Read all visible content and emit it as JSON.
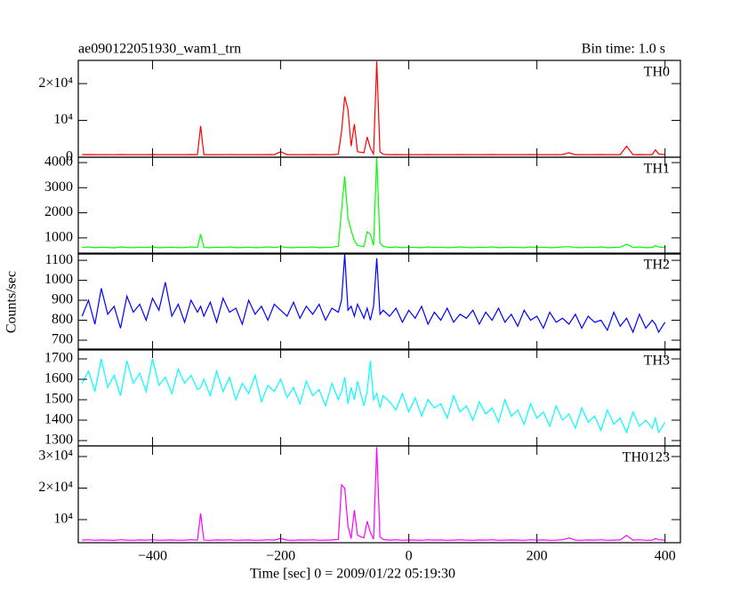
{
  "header": {
    "title": "ae090122051930_wam1_trn",
    "bin_time": "Bin time: 1.0 s"
  },
  "ylabel": "Counts/sec",
  "chart_data": [
    {
      "type": "line",
      "x": [
        -510,
        -500,
        -490,
        -480,
        -470,
        -460,
        -450,
        -440,
        -430,
        -420,
        -410,
        -400,
        -390,
        -380,
        -370,
        -360,
        -350,
        -340,
        -330,
        -325,
        -320,
        -310,
        -300,
        -290,
        -280,
        -270,
        -260,
        -250,
        -240,
        -230,
        -220,
        -210,
        -200,
        -190,
        -180,
        -170,
        -160,
        -150,
        -140,
        -130,
        -120,
        -110,
        -105,
        -100,
        -95,
        -90,
        -85,
        -80,
        -70,
        -65,
        -60,
        -55,
        -50,
        -45,
        -40,
        -30,
        -20,
        -10,
        0,
        10,
        20,
        30,
        40,
        50,
        60,
        70,
        80,
        90,
        100,
        110,
        120,
        130,
        140,
        150,
        160,
        170,
        180,
        190,
        200,
        210,
        220,
        230,
        240,
        250,
        260,
        270,
        280,
        290,
        300,
        310,
        320,
        330,
        340,
        350,
        360,
        370,
        380,
        385,
        390,
        400
      ],
      "series": [
        {
          "name": "TH0",
          "color": "#ff0000",
          "values": [
            700,
            720,
            690,
            710,
            700,
            680,
            720,
            700,
            690,
            710,
            700,
            720,
            690,
            700,
            710,
            690,
            700,
            720,
            700,
            8500,
            700,
            690,
            710,
            700,
            720,
            690,
            700,
            710,
            690,
            700,
            720,
            700,
            1500,
            700,
            690,
            710,
            700,
            720,
            690,
            700,
            710,
            800,
            7000,
            16500,
            13000,
            3000,
            9000,
            1500,
            1200,
            5500,
            2500,
            900,
            26000,
            1500,
            800,
            700,
            720,
            690,
            710,
            700,
            690,
            720,
            700,
            710,
            690,
            700,
            720,
            700,
            690,
            710,
            700,
            720,
            690,
            700,
            710,
            700,
            690,
            720,
            700,
            710,
            690,
            700,
            720,
            1200,
            700,
            690,
            710,
            700,
            720,
            690,
            700,
            710,
            3000,
            700,
            720,
            690,
            700,
            2000,
            900,
            700
          ]
        }
      ],
      "xlim": [
        -516,
        424
      ],
      "xticks": [
        -400,
        -200,
        0,
        200,
        400
      ],
      "ylim": [
        0,
        26300
      ],
      "yticks": [
        0,
        {
          "value": 10000,
          "label": "10⁴"
        },
        {
          "value": 20000,
          "label": "2×10⁴"
        }
      ]
    },
    {
      "type": "line",
      "x": [
        -510,
        -500,
        -490,
        -480,
        -470,
        -460,
        -450,
        -440,
        -430,
        -420,
        -410,
        -400,
        -390,
        -380,
        -370,
        -360,
        -350,
        -340,
        -330,
        -325,
        -320,
        -310,
        -300,
        -290,
        -280,
        -270,
        -260,
        -250,
        -240,
        -230,
        -220,
        -210,
        -200,
        -190,
        -180,
        -170,
        -160,
        -150,
        -140,
        -130,
        -120,
        -110,
        -105,
        -100,
        -95,
        -90,
        -85,
        -80,
        -70,
        -65,
        -60,
        -55,
        -50,
        -45,
        -40,
        -30,
        -20,
        -10,
        0,
        10,
        20,
        30,
        40,
        50,
        60,
        70,
        80,
        90,
        100,
        110,
        120,
        130,
        140,
        150,
        160,
        170,
        180,
        190,
        200,
        210,
        220,
        230,
        240,
        250,
        260,
        270,
        280,
        290,
        300,
        310,
        320,
        330,
        340,
        350,
        360,
        370,
        380,
        385,
        390,
        400
      ],
      "series": [
        {
          "name": "TH1",
          "color": "#00ff00",
          "values": [
            620,
            640,
            610,
            630,
            620,
            600,
            640,
            620,
            610,
            630,
            620,
            640,
            610,
            620,
            630,
            610,
            620,
            640,
            620,
            1150,
            620,
            610,
            630,
            620,
            640,
            610,
            620,
            630,
            610,
            620,
            640,
            620,
            650,
            620,
            610,
            630,
            620,
            640,
            610,
            620,
            630,
            660,
            2100,
            3450,
            1800,
            1300,
            900,
            700,
            650,
            1250,
            1150,
            700,
            4200,
            800,
            660,
            620,
            640,
            610,
            630,
            620,
            610,
            640,
            620,
            630,
            610,
            620,
            640,
            620,
            610,
            630,
            620,
            640,
            610,
            620,
            630,
            620,
            610,
            640,
            620,
            630,
            610,
            620,
            640,
            650,
            620,
            610,
            630,
            620,
            640,
            610,
            620,
            630,
            750,
            620,
            640,
            610,
            620,
            700,
            640,
            620
          ]
        }
      ],
      "xlim": [
        -516,
        424
      ],
      "xticks": [
        -400,
        -200,
        0,
        200,
        400
      ],
      "ylim": [
        357,
        4214
      ],
      "yticks": [
        1000,
        2000,
        3000,
        4000
      ]
    },
    {
      "type": "line",
      "x": [
        -510,
        -500,
        -490,
        -480,
        -470,
        -460,
        -450,
        -440,
        -430,
        -420,
        -410,
        -400,
        -390,
        -380,
        -370,
        -360,
        -350,
        -340,
        -330,
        -325,
        -320,
        -310,
        -300,
        -290,
        -280,
        -270,
        -260,
        -250,
        -240,
        -230,
        -220,
        -210,
        -200,
        -190,
        -180,
        -170,
        -160,
        -150,
        -140,
        -130,
        -120,
        -110,
        -105,
        -100,
        -95,
        -90,
        -85,
        -80,
        -70,
        -65,
        -60,
        -55,
        -50,
        -45,
        -40,
        -30,
        -20,
        -10,
        0,
        10,
        20,
        30,
        40,
        50,
        60,
        70,
        80,
        90,
        100,
        110,
        120,
        130,
        140,
        150,
        160,
        170,
        180,
        190,
        200,
        210,
        220,
        230,
        240,
        250,
        260,
        270,
        280,
        290,
        300,
        310,
        320,
        330,
        340,
        350,
        360,
        370,
        380,
        385,
        390,
        400
      ],
      "series": [
        {
          "name": "TH2",
          "color": "#0000ff",
          "values": [
            820,
            900,
            780,
            960,
            830,
            870,
            760,
            920,
            840,
            880,
            800,
            910,
            850,
            990,
            820,
            880,
            790,
            900,
            840,
            870,
            820,
            890,
            790,
            910,
            840,
            860,
            780,
            900,
            830,
            870,
            800,
            880,
            850,
            820,
            890,
            810,
            870,
            830,
            880,
            800,
            860,
            840,
            900,
            1130,
            850,
            870,
            820,
            880,
            810,
            860,
            800,
            870,
            1110,
            830,
            850,
            820,
            860,
            790,
            850,
            810,
            870,
            780,
            840,
            800,
            860,
            790,
            830,
            810,
            850,
            780,
            840,
            800,
            860,
            790,
            830,
            770,
            850,
            800,
            820,
            760,
            840,
            790,
            810,
            780,
            830,
            760,
            820,
            790,
            800,
            750,
            840,
            770,
            810,
            740,
            830,
            760,
            800,
            780,
            740,
            790
          ]
        }
      ],
      "xlim": [
        -516,
        424
      ],
      "xticks": [
        -400,
        -200,
        0,
        200,
        400
      ],
      "ylim": [
        651,
        1136
      ],
      "yticks": [
        700,
        800,
        900,
        1000,
        1100
      ]
    },
    {
      "type": "line",
      "x": [
        -510,
        -500,
        -490,
        -480,
        -470,
        -460,
        -450,
        -440,
        -430,
        -420,
        -410,
        -400,
        -390,
        -380,
        -370,
        -360,
        -350,
        -340,
        -330,
        -325,
        -320,
        -310,
        -300,
        -290,
        -280,
        -270,
        -260,
        -250,
        -240,
        -230,
        -220,
        -210,
        -200,
        -190,
        -180,
        -170,
        -160,
        -150,
        -140,
        -130,
        -120,
        -110,
        -105,
        -100,
        -95,
        -90,
        -85,
        -80,
        -70,
        -65,
        -60,
        -55,
        -50,
        -45,
        -40,
        -30,
        -20,
        -10,
        0,
        10,
        20,
        30,
        40,
        50,
        60,
        70,
        80,
        90,
        100,
        110,
        120,
        130,
        140,
        150,
        160,
        170,
        180,
        190,
        200,
        210,
        220,
        230,
        240,
        250,
        260,
        270,
        280,
        290,
        300,
        310,
        320,
        330,
        340,
        350,
        360,
        370,
        380,
        385,
        390,
        400
      ],
      "series": [
        {
          "name": "TH3",
          "color": "#00ffff",
          "values": [
            1580,
            1640,
            1540,
            1700,
            1560,
            1620,
            1520,
            1690,
            1580,
            1630,
            1540,
            1700,
            1570,
            1610,
            1530,
            1650,
            1580,
            1620,
            1550,
            1560,
            1600,
            1520,
            1640,
            1540,
            1610,
            1500,
            1580,
            1530,
            1620,
            1490,
            1570,
            1540,
            1600,
            1510,
            1560,
            1480,
            1590,
            1520,
            1550,
            1470,
            1580,
            1500,
            1540,
            1610,
            1480,
            1560,
            1500,
            1590,
            1470,
            1540,
            1690,
            1500,
            1530,
            1460,
            1520,
            1490,
            1450,
            1530,
            1440,
            1510,
            1420,
            1500,
            1460,
            1480,
            1410,
            1520,
            1440,
            1470,
            1400,
            1490,
            1430,
            1460,
            1390,
            1500,
            1420,
            1450,
            1380,
            1480,
            1410,
            1440,
            1370,
            1470,
            1400,
            1430,
            1360,
            1460,
            1390,
            1420,
            1350,
            1450,
            1380,
            1410,
            1340,
            1440,
            1370,
            1400,
            1360,
            1410,
            1340,
            1390
          ]
        }
      ],
      "xlim": [
        -516,
        424
      ],
      "xticks": [
        -400,
        -200,
        0,
        200,
        400
      ],
      "ylim": [
        1274,
        1748
      ],
      "yticks": [
        1300,
        1400,
        1500,
        1600,
        1700
      ]
    },
    {
      "type": "line",
      "x": [
        -510,
        -500,
        -490,
        -480,
        -470,
        -460,
        -450,
        -440,
        -430,
        -420,
        -410,
        -400,
        -390,
        -380,
        -370,
        -360,
        -350,
        -340,
        -330,
        -325,
        -320,
        -310,
        -300,
        -290,
        -280,
        -270,
        -260,
        -250,
        -240,
        -230,
        -220,
        -210,
        -200,
        -190,
        -180,
        -170,
        -160,
        -150,
        -140,
        -130,
        -120,
        -110,
        -105,
        -100,
        -95,
        -90,
        -85,
        -80,
        -70,
        -65,
        -60,
        -55,
        -50,
        -45,
        -40,
        -30,
        -20,
        -10,
        0,
        10,
        20,
        30,
        40,
        50,
        60,
        70,
        80,
        90,
        100,
        110,
        120,
        130,
        140,
        150,
        160,
        170,
        180,
        190,
        200,
        210,
        220,
        230,
        240,
        250,
        260,
        270,
        280,
        290,
        300,
        310,
        320,
        330,
        340,
        350,
        360,
        370,
        380,
        385,
        390,
        400
      ],
      "series": [
        {
          "name": "TH0123",
          "color": "#ff00ff",
          "values": [
            3500,
            3600,
            3450,
            3550,
            3500,
            3400,
            3600,
            3500,
            3450,
            3550,
            3500,
            3600,
            3450,
            3500,
            3550,
            3450,
            3500,
            3600,
            3500,
            12000,
            3500,
            3450,
            3550,
            3500,
            3600,
            3450,
            3500,
            3550,
            3450,
            3500,
            3600,
            3500,
            4000,
            3500,
            3450,
            3550,
            3500,
            3600,
            3450,
            3500,
            3550,
            3700,
            21000,
            20000,
            8000,
            4000,
            13000,
            5000,
            4200,
            9500,
            6000,
            3800,
            33000,
            4500,
            3700,
            3500,
            3600,
            3450,
            3550,
            3500,
            3450,
            3600,
            3500,
            3550,
            3450,
            3500,
            3600,
            3500,
            3450,
            3550,
            3500,
            3600,
            3450,
            3500,
            3550,
            3500,
            3450,
            3600,
            3500,
            3550,
            3450,
            3500,
            3600,
            4200,
            3500,
            3450,
            3550,
            3500,
            3600,
            3450,
            3500,
            3550,
            5000,
            3500,
            3600,
            3450,
            3500,
            4000,
            3600,
            3500
          ]
        }
      ],
      "xlim": [
        -516,
        424
      ],
      "xticks": [
        {
          "value": -400,
          "label": "−400"
        },
        {
          "value": -200,
          "label": "−200"
        },
        0,
        200,
        400
      ],
      "xlabel": "Time [sec] 0 = 2009/01/22 05:19:30",
      "ylim": [
        2676,
        33380
      ],
      "yticks": [
        {
          "value": 10000,
          "label": "10⁴"
        },
        {
          "value": 20000,
          "label": "2×10⁴"
        },
        {
          "value": 30000,
          "label": "3×10⁴"
        }
      ]
    }
  ]
}
